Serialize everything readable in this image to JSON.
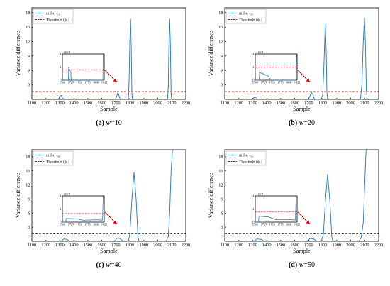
{
  "chart_data": [
    {
      "type": "line",
      "panel": "a",
      "caption_letter": "(a)",
      "caption_param": "w",
      "caption_value": "=10",
      "xlabel": "Sample",
      "ylabel": "Variance difference",
      "xlim": [
        1100,
        2200
      ],
      "ylim": [
        0,
        19
      ],
      "x_ticks": [
        "1100",
        "1200",
        "1300",
        "1400",
        "1500",
        "1600",
        "1700",
        "1800",
        "1900",
        "2000",
        "2100",
        "2200"
      ],
      "y_ticks": [
        "3",
        "6",
        "9",
        "12",
        "15",
        "18"
      ],
      "legend": {
        "position": "top-left",
        "entries": [
          "diffσ₁₋₁₀",
          "Threshold (ϕ₁)"
        ]
      },
      "threshold": 1.6,
      "series": [
        {
          "name": "diffσ₁₋₁₀",
          "points": [
            [
              1100,
              0.05
            ],
            [
              1290,
              0.05
            ],
            [
              1295,
              0.3
            ],
            [
              1300,
              0.7
            ],
            [
              1310,
              0.8
            ],
            [
              1320,
              0.2
            ],
            [
              1330,
              0.05
            ],
            [
              1700,
              0.05
            ],
            [
              1710,
              1.0
            ],
            [
              1715,
              1.5
            ],
            [
              1720,
              1.0
            ],
            [
              1730,
              0.1
            ],
            [
              1780,
              0.05
            ],
            [
              1790,
              0.1
            ],
            [
              1795,
              4.0
            ],
            [
              1800,
              12.0
            ],
            [
              1805,
              16.7
            ],
            [
              1810,
              11.0
            ],
            [
              1815,
              1.0
            ],
            [
              1820,
              0.05
            ],
            [
              2070,
              0.05
            ],
            [
              2075,
              3.0
            ],
            [
              2080,
              12.0
            ],
            [
              2085,
              16.7
            ],
            [
              2090,
              11.0
            ],
            [
              2095,
              1.0
            ],
            [
              2100,
              0.05
            ],
            [
              2200,
              0.05
            ]
          ]
        }
      ],
      "inset": {
        "exponent_label": "×10⁻⁴",
        "xlim": [
          1700,
          1825
        ],
        "x_ticks": [
          "1700",
          "1725",
          "1750",
          "1775",
          "1800",
          "1825"
        ],
        "ylim": [
          0,
          4
        ],
        "y_ticks": [
          "0",
          "2",
          "4"
        ],
        "threshold": 1.6,
        "series": [
          [
            1700,
            0.0
          ],
          [
            1718,
            0.0
          ],
          [
            1719,
            2.0
          ],
          [
            1722,
            1.5
          ],
          [
            1725,
            1.4
          ],
          [
            1726,
            0.0
          ],
          [
            1821,
            0.0
          ],
          [
            1822,
            4.0
          ]
        ]
      }
    },
    {
      "type": "line",
      "panel": "b",
      "caption_letter": "(b)",
      "caption_param": "w",
      "caption_value": "=20",
      "xlabel": "Sample",
      "ylabel": "Variance difference",
      "xlim": [
        1100,
        2200
      ],
      "ylim": [
        0,
        19
      ],
      "x_ticks": [
        "1100",
        "1200",
        "1300",
        "1400",
        "1500",
        "1600",
        "1700",
        "1800",
        "1900",
        "2000",
        "2100",
        "2200"
      ],
      "y_ticks": [
        "3",
        "6",
        "9",
        "12",
        "15",
        "18"
      ],
      "legend": {
        "position": "top-left",
        "entries": [
          "diffσ₁₋₂₀",
          "Threshold (ϕ₁)"
        ]
      },
      "threshold": 1.6,
      "series": [
        {
          "name": "diffσ₁₋₂₀",
          "points": [
            [
              1100,
              0.05
            ],
            [
              1300,
              0.05
            ],
            [
              1310,
              0.4
            ],
            [
              1320,
              0.5
            ],
            [
              1330,
              0.05
            ],
            [
              1700,
              0.05
            ],
            [
              1710,
              0.8
            ],
            [
              1720,
              1.4
            ],
            [
              1730,
              1.0
            ],
            [
              1740,
              0.1
            ],
            [
              1790,
              0.05
            ],
            [
              1800,
              1.0
            ],
            [
              1810,
              8.0
            ],
            [
              1818,
              15.8
            ],
            [
              1825,
              10.0
            ],
            [
              1830,
              1.5
            ],
            [
              1835,
              0.05
            ],
            [
              2070,
              0.05
            ],
            [
              2080,
              3.0
            ],
            [
              2090,
              12.0
            ],
            [
              2098,
              17.0
            ],
            [
              2105,
              12.0
            ],
            [
              2112,
              2.0
            ],
            [
              2118,
              0.05
            ],
            [
              2200,
              0.05
            ]
          ]
        }
      ],
      "inset": {
        "exponent_label": "×10⁻⁴",
        "xlim": [
          1700,
          1825
        ],
        "x_ticks": [
          "1700",
          "1725",
          "1750",
          "1775",
          "1800",
          "1825"
        ],
        "ylim": [
          0,
          4
        ],
        "y_ticks": [
          "0",
          "2",
          "4"
        ],
        "threshold": 2.0,
        "series": [
          [
            1700,
            0.0
          ],
          [
            1712,
            0.0
          ],
          [
            1713,
            1.2
          ],
          [
            1740,
            0.6
          ],
          [
            1745,
            0.0
          ],
          [
            1822,
            0.0
          ],
          [
            1823,
            4.0
          ]
        ]
      }
    },
    {
      "type": "line",
      "panel": "c",
      "caption_letter": "(c)",
      "caption_param": "w",
      "caption_value": "=40",
      "xlabel": "Sample",
      "ylabel": "Variance difference",
      "xlim": [
        1100,
        2200
      ],
      "ylim": [
        0,
        19.5
      ],
      "x_ticks": [
        "1100",
        "1200",
        "1300",
        "1400",
        "1500",
        "1600",
        "1700",
        "1800",
        "1900",
        "2000",
        "2100",
        "2200"
      ],
      "y_ticks": [
        "3",
        "6",
        "9",
        "12",
        "15",
        "18"
      ],
      "legend": {
        "position": "top-left",
        "entries": [
          "diffσ₁₋₄₀",
          "Threshold (ϕ₁)"
        ]
      },
      "threshold": 1.6,
      "series": [
        {
          "name": "diffσ₁₋₄₀",
          "points": [
            [
              1100,
              0.05
            ],
            [
              1310,
              0.05
            ],
            [
              1330,
              0.5
            ],
            [
              1350,
              0.4
            ],
            [
              1370,
              0.05
            ],
            [
              1690,
              0.05
            ],
            [
              1710,
              0.7
            ],
            [
              1730,
              0.6
            ],
            [
              1750,
              0.05
            ],
            [
              1790,
              0.05
            ],
            [
              1800,
              1.5
            ],
            [
              1815,
              9.0
            ],
            [
              1830,
              14.7
            ],
            [
              1845,
              9.0
            ],
            [
              1858,
              1.0
            ],
            [
              1865,
              0.05
            ],
            [
              2060,
              0.05
            ],
            [
              2075,
              1.0
            ],
            [
              2085,
              6.0
            ],
            [
              2095,
              15.0
            ],
            [
              2105,
              19.5
            ],
            [
              2110,
              19.5
            ]
          ]
        }
      ],
      "inset": {
        "exponent_label": "×10⁻⁴",
        "xlim": [
          1700,
          1825
        ],
        "x_ticks": [
          "1700",
          "1725",
          "1750",
          "1775",
          "1800",
          "1825"
        ],
        "ylim": [
          0,
          4
        ],
        "y_ticks": [
          "0",
          "2",
          "4"
        ],
        "threshold": 1.3,
        "series": [
          [
            1700,
            0.0
          ],
          [
            1710,
            0.0
          ],
          [
            1711,
            0.55
          ],
          [
            1745,
            0.5
          ],
          [
            1762,
            0.3
          ],
          [
            1805,
            0.35
          ],
          [
            1820,
            0.3
          ],
          [
            1822,
            4.0
          ]
        ]
      }
    },
    {
      "type": "line",
      "panel": "d",
      "caption_letter": "(d)",
      "caption_param": "w",
      "caption_value": "=50",
      "xlabel": "Sample",
      "ylabel": "Variance difference",
      "xlim": [
        1100,
        2200
      ],
      "ylim": [
        0,
        19.5
      ],
      "x_ticks": [
        "1100",
        "1200",
        "1300",
        "1400",
        "1500",
        "1600",
        "1700",
        "1800",
        "1900",
        "2000",
        "2100",
        "2200"
      ],
      "y_ticks": [
        "3",
        "6",
        "9",
        "12",
        "15",
        "18"
      ],
      "legend": {
        "position": "top-left",
        "entries": [
          "diffσ₁₋₅₀",
          "Threshold (ϕ₁)"
        ]
      },
      "threshold": 1.6,
      "series": [
        {
          "name": "diffσ₁₋₅₀",
          "points": [
            [
              1100,
              0.05
            ],
            [
              1310,
              0.05
            ],
            [
              1330,
              0.5
            ],
            [
              1360,
              0.4
            ],
            [
              1380,
              0.05
            ],
            [
              1690,
              0.05
            ],
            [
              1710,
              0.6
            ],
            [
              1735,
              0.5
            ],
            [
              1755,
              0.05
            ],
            [
              1790,
              0.05
            ],
            [
              1805,
              1.5
            ],
            [
              1820,
              9.0
            ],
            [
              1835,
              14.4
            ],
            [
              1850,
              9.0
            ],
            [
              1865,
              1.0
            ],
            [
              1872,
              0.05
            ],
            [
              2060,
              0.05
            ],
            [
              2075,
              0.8
            ],
            [
              2090,
              4.0
            ],
            [
              2100,
              12.0
            ],
            [
              2110,
              19.5
            ],
            [
              2118,
              19.5
            ]
          ]
        }
      ],
      "inset": {
        "exponent_label": "×10⁻⁴",
        "xlim": [
          1700,
          1825
        ],
        "x_ticks": [
          "1700",
          "1725",
          "1750",
          "1775",
          "1800",
          "1825"
        ],
        "ylim": [
          0,
          4
        ],
        "y_ticks": [
          "0",
          "2",
          "4"
        ],
        "threshold": 1.6,
        "series": [
          [
            1700,
            0.0
          ],
          [
            1710,
            0.0
          ],
          [
            1711,
            0.9
          ],
          [
            1740,
            0.8
          ],
          [
            1760,
            0.4
          ],
          [
            1805,
            0.4
          ],
          [
            1820,
            0.3
          ],
          [
            1822,
            4.0
          ]
        ]
      }
    }
  ],
  "colors": {
    "series": "#1f77b4",
    "threshold": "#e8000b",
    "arrow": "#e8000b",
    "axis": "#000000"
  }
}
